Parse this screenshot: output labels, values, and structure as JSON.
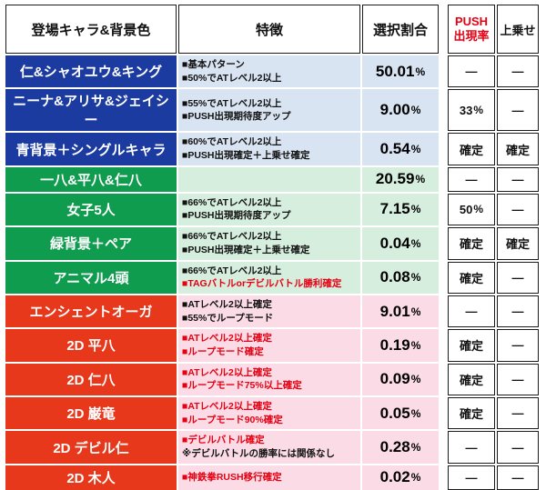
{
  "header": {
    "col_character": "登場キャラ&背景色",
    "col_features": "特徴",
    "col_ratio": "選択割合",
    "col_push_line1": "PUSH",
    "col_push_line2": "出現率",
    "col_bonus": "上乗せ"
  },
  "colors": {
    "blue_dark": "#1c3ba0",
    "blue_light": "#d9e4f2",
    "green_dark": "#0f9c4f",
    "green_light": "#d6eede",
    "red_dark": "#e8381b",
    "red_light": "#fbdce6",
    "accent_red": "#e60012",
    "border_black": "#1a1a1a"
  },
  "rows": [
    {
      "name": "仁&シャオユウ&キング",
      "theme": "blue",
      "features": [
        {
          "text": "■基本パターン",
          "color": "black"
        },
        {
          "text": "■50%でATレベル2以上",
          "color": "black"
        }
      ],
      "ratio": "50.01%",
      "push": "—",
      "bonus": "—"
    },
    {
      "name": "ニーナ&アリサ&ジェイシー",
      "theme": "blue",
      "features": [
        {
          "text": "■55%でATレベル2以上",
          "color": "black"
        },
        {
          "text": "■PUSH出現期待度アップ",
          "color": "black"
        }
      ],
      "ratio": "9.00%",
      "push": "33%",
      "bonus": "—"
    },
    {
      "name": "青背景＋シングルキャラ",
      "theme": "blue",
      "features": [
        {
          "text": "■60%でATレベル2以上",
          "color": "black"
        },
        {
          "text": "■PUSH出現確定＋上乗せ確定",
          "color": "black"
        }
      ],
      "ratio": "0.54%",
      "push": "確定",
      "bonus": "確定"
    },
    {
      "name": "一八&平八&仁八",
      "theme": "green",
      "features": [],
      "ratio": "20.59%",
      "push": "—",
      "bonus": "—"
    },
    {
      "name": "女子5人",
      "theme": "green",
      "features": [
        {
          "text": "■66%でATレベル2以上",
          "color": "black"
        },
        {
          "text": "■PUSH出現期待度アップ",
          "color": "black"
        }
      ],
      "ratio": "7.15%",
      "push": "50%",
      "bonus": "—"
    },
    {
      "name": "緑背景＋ペア",
      "theme": "green",
      "features": [
        {
          "text": "■66%でATレベル2以上",
          "color": "black"
        },
        {
          "text": "■PUSH出現確定＋上乗せ確定",
          "color": "black"
        }
      ],
      "ratio": "0.04%",
      "push": "確定",
      "bonus": "確定"
    },
    {
      "name": "アニマル4頭",
      "theme": "green",
      "features": [
        {
          "text": "■66%でATレベル2以上",
          "color": "black"
        },
        {
          "text": "■TAGバトルorデビルバトル勝利確定",
          "color": "red"
        }
      ],
      "ratio": "0.08%",
      "push": "確定",
      "bonus": "—"
    },
    {
      "name": "エンシェントオーガ",
      "theme": "red",
      "features": [
        {
          "text": "■ATレベル2以上確定",
          "color": "black"
        },
        {
          "text": "■55%でループモード",
          "color": "black"
        }
      ],
      "ratio": "9.01%",
      "push": "—",
      "bonus": "—"
    },
    {
      "name": "2D 平八",
      "theme": "red",
      "features": [
        {
          "text": "■ATレベル2以上確定",
          "color": "red"
        },
        {
          "text": "■ループモード確定",
          "color": "red"
        }
      ],
      "ratio": "0.19%",
      "push": "確定",
      "bonus": "—"
    },
    {
      "name": "2D 仁八",
      "theme": "red",
      "features": [
        {
          "text": "■ATレベル2以上確定",
          "color": "red"
        },
        {
          "text": "■ループモード75%以上確定",
          "color": "red"
        }
      ],
      "ratio": "0.09%",
      "push": "確定",
      "bonus": "—"
    },
    {
      "name": "2D 巌竜",
      "theme": "red",
      "features": [
        {
          "text": "■ATレベル2以上確定",
          "color": "red"
        },
        {
          "text": "■ループモード90%確定",
          "color": "red"
        }
      ],
      "ratio": "0.05%",
      "push": "確定",
      "bonus": "—"
    },
    {
      "name": "2D デビル仁",
      "theme": "red",
      "features": [
        {
          "text": "■デビルバトル確定",
          "color": "red"
        },
        {
          "text": "※デビルバトルの勝率には関係なし",
          "color": "black"
        }
      ],
      "ratio": "0.28%",
      "push": "—",
      "bonus": "—"
    },
    {
      "name": "2D 木人",
      "theme": "red",
      "features": [
        {
          "text": "■神鉄拳RUSH移行確定",
          "color": "red"
        }
      ],
      "ratio": "0.02%",
      "push": "—",
      "bonus": "—"
    }
  ]
}
